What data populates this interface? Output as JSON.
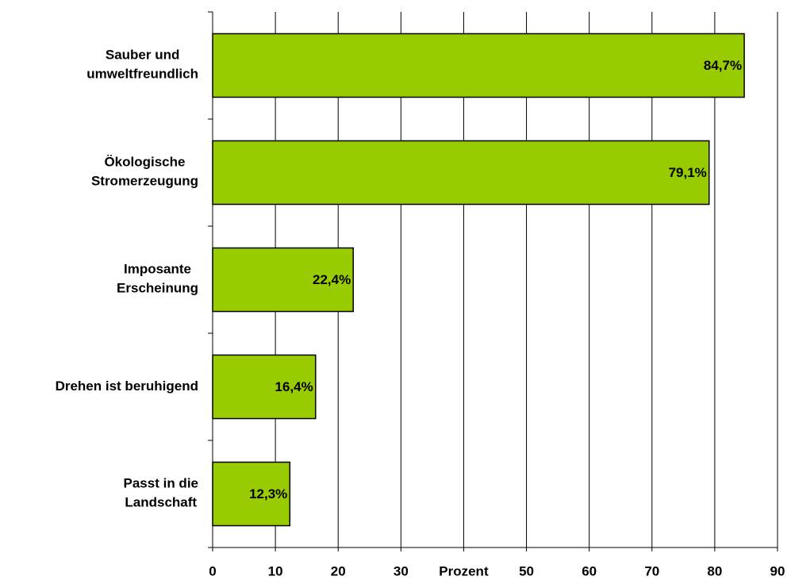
{
  "chart_data": {
    "type": "barh",
    "categories": [
      "Sauber und\numweltfreundlich",
      "Ökologische\nStromerzeugung",
      "Imposante\nErscheinung",
      "Drehen ist beruhigend",
      "Passt in die\nLandschaft"
    ],
    "values": [
      84.7,
      79.1,
      22.4,
      16.4,
      12.3
    ],
    "value_labels": [
      "84,7%",
      "79,1%",
      "22,4%",
      "16,4%",
      "12,3%"
    ],
    "color": "#99cc00",
    "xlim": [
      0,
      90
    ],
    "xticks": [
      0,
      10,
      20,
      30,
      {
        "value": 40,
        "label": "Prozent"
      },
      50,
      60,
      70,
      80,
      90
    ],
    "grid": true
  }
}
